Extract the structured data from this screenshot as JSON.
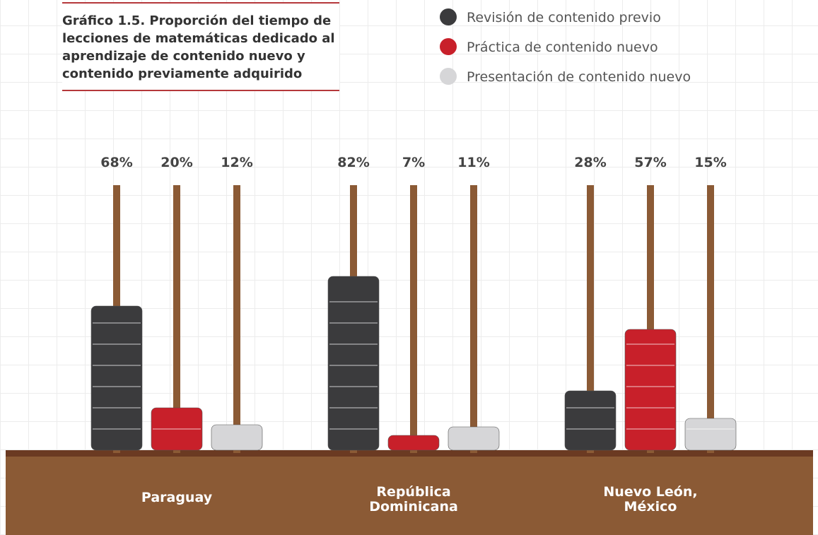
{
  "chart_data": {
    "type": "bar",
    "title": "Gráfico 1.5. Proporción del tiempo de lecciones de matemáticas dedicado al aprendizaje de contenido nuevo y contenido previamente adquirido",
    "categories": [
      "Paraguay",
      "República Dominicana",
      "Nuevo León, México"
    ],
    "series": [
      {
        "name": "Revisión de contenido previo",
        "color": "#3b3b3d",
        "values": [
          68,
          82,
          28
        ],
        "value_labels": [
          "68%",
          "82%",
          "28%"
        ]
      },
      {
        "name": "Práctica de contenido nuevo",
        "color": "#c8202a",
        "values": [
          20,
          7,
          57
        ],
        "value_labels": [
          "20%",
          "7%",
          "57%"
        ]
      },
      {
        "name": "Presentación de contenido nuevo",
        "color": "#d6d6d8",
        "values": [
          12,
          11,
          15
        ],
        "value_labels": [
          "12%",
          "11%",
          "15%"
        ]
      }
    ]
  }
}
